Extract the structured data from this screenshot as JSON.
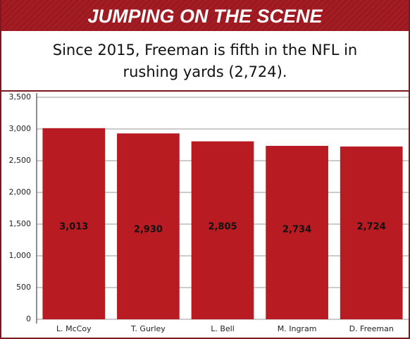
{
  "header": {
    "title": "JUMPING ON THE SCENE"
  },
  "chart_data": {
    "type": "bar",
    "subtitle": "Since 2015, Freeman is fifth in the NFL in rushing yards (2,724).",
    "categories": [
      "L. McCoy",
      "T. Gurley",
      "L. Bell",
      "M. Ingram",
      "D. Freeman"
    ],
    "values": [
      3013,
      2930,
      2805,
      2734,
      2724
    ],
    "value_labels": [
      "3,013",
      "2,930",
      "2,805",
      "2,734",
      "2,724"
    ],
    "color": "#b81c22",
    "ylim": [
      0,
      3500
    ],
    "yticks": [
      0,
      500,
      {
        "value": 1000,
        "label": "1,000"
      },
      {
        "value": 1500,
        "label": "1,500"
      },
      {
        "value": 2000,
        "label": "2,000"
      },
      {
        "value": 2500,
        "label": "2,500"
      },
      {
        "value": 3000,
        "label": "3,000"
      },
      {
        "value": 3500,
        "label": "3,500"
      }
    ],
    "grid": true
  }
}
